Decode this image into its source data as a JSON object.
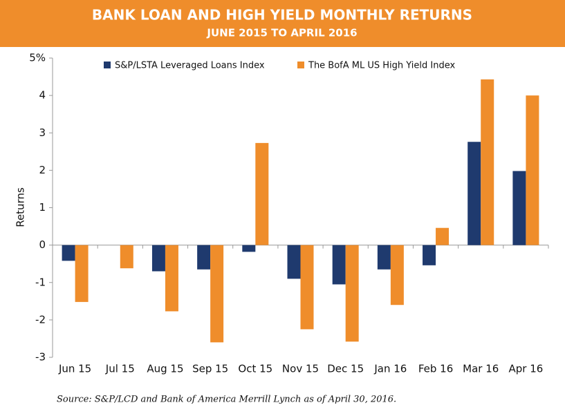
{
  "chart_data": {
    "type": "bar",
    "title": "BANK LOAN AND HIGH YIELD MONTHLY RETURNS",
    "subtitle": "JUNE 2015 TO APRIL 2016",
    "y_label": "Returns",
    "source": "Source: S&P/LCD and Bank of America Merrill Lynch as of April 30, 2016.",
    "categories": [
      "Jun 15",
      "Jul 15",
      "Aug 15",
      "Sep 15",
      "Oct 15",
      "Nov 15",
      "Dec 15",
      "Jan 16",
      "Feb 16",
      "Mar 16",
      "Apr 16"
    ],
    "series": [
      {
        "name": "S&P/LSTA Leveraged Loans Index",
        "color": "#1f3a6e",
        "values": [
          -0.42,
          0,
          -0.7,
          -0.65,
          -0.18,
          -0.9,
          -1.05,
          -0.65,
          -0.54,
          2.76,
          1.98
        ]
      },
      {
        "name": "The BofA ML US High Yield Index",
        "color": "#ef8d2b",
        "values": [
          -1.52,
          -0.62,
          -1.77,
          -2.6,
          2.73,
          -2.25,
          -2.58,
          -1.6,
          0.46,
          4.43,
          4.0
        ]
      }
    ],
    "ylim": [
      -3,
      5
    ],
    "yticks": [
      -3,
      -2,
      -1,
      0,
      1,
      2,
      3,
      4,
      {
        "value": 5,
        "label": "5%"
      }
    ],
    "legend": "top"
  }
}
